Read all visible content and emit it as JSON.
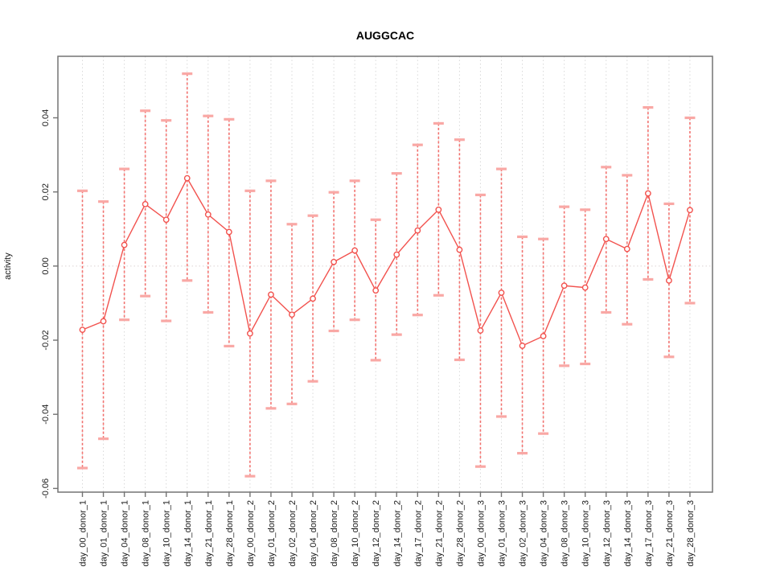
{
  "chart_data": {
    "type": "line",
    "title": "AUGGCAC",
    "xlabel": "",
    "ylabel": "activity",
    "ylim": [
      -0.061,
      0.0566
    ],
    "yticks": [
      0.04,
      0.02,
      0.0,
      -0.02,
      -0.04,
      -0.06
    ],
    "grid": {
      "vertical_dotted_per_category": true,
      "horizontal_zero_line_dotted": true
    },
    "legend": null,
    "marker": "open-circle",
    "error_bars": true,
    "colors": {
      "series": "#f2524e",
      "error_cap": "#f9a8a5",
      "gridline": "#d9d9d9",
      "zero_line": "#ddd2d2",
      "box": "#737373",
      "text": "#1a1a1a"
    },
    "categories": [
      "day_00_donor_1",
      "day_01_donor_1",
      "day_04_donor_1",
      "day_08_donor_1",
      "day_10_donor_1",
      "day_14_donor_1",
      "day_21_donor_1",
      "day_28_donor_1",
      "day_00_donor_2",
      "day_01_donor_2",
      "day_02_donor_2",
      "day_04_donor_2",
      "day_08_donor_2",
      "day_10_donor_2",
      "day_12_donor_2",
      "day_14_donor_2",
      "day_17_donor_2",
      "day_21_donor_2",
      "day_28_donor_2",
      "day_00_donor_3",
      "day_01_donor_3",
      "day_02_donor_3",
      "day_04_donor_3",
      "day_08_donor_3",
      "day_10_donor_3",
      "day_12_donor_3",
      "day_14_donor_3",
      "day_17_donor_3",
      "day_21_donor_3",
      "day_28_donor_3"
    ],
    "series": [
      {
        "name": "AUGGCAC activity",
        "values": [
          -0.0172,
          -0.0149,
          0.0057,
          0.0167,
          0.0125,
          0.0237,
          0.0139,
          0.0092,
          -0.0182,
          -0.0077,
          -0.0131,
          -0.0088,
          0.0011,
          0.0042,
          -0.0066,
          0.0031,
          0.0096,
          0.0152,
          0.0044,
          -0.0174,
          -0.0072,
          -0.0215,
          -0.0189,
          -0.0053,
          -0.0058,
          0.0073,
          0.0046,
          0.0196,
          -0.0039,
          0.0151
        ],
        "upper": [
          0.0203,
          0.0174,
          0.0262,
          0.0419,
          0.0393,
          0.0519,
          0.0405,
          0.0396,
          0.0203,
          0.023,
          0.0113,
          0.0136,
          0.0199,
          0.023,
          0.0125,
          0.025,
          0.0327,
          0.0385,
          0.0341,
          0.0192,
          0.0262,
          0.0079,
          0.0073,
          0.016,
          0.0152,
          0.0267,
          0.0245,
          0.0428,
          0.0168,
          0.04
        ],
        "lower": [
          -0.0545,
          -0.0466,
          -0.0145,
          -0.0081,
          -0.0148,
          -0.0039,
          -0.0125,
          -0.0216,
          -0.0567,
          -0.0384,
          -0.0372,
          -0.0311,
          -0.0175,
          -0.0145,
          -0.0254,
          -0.0185,
          -0.0132,
          -0.0079,
          -0.0253,
          -0.0541,
          -0.0406,
          -0.0505,
          -0.0452,
          -0.0269,
          -0.0264,
          -0.0125,
          -0.0157,
          -0.0036,
          -0.0245,
          -0.01
        ]
      }
    ]
  }
}
